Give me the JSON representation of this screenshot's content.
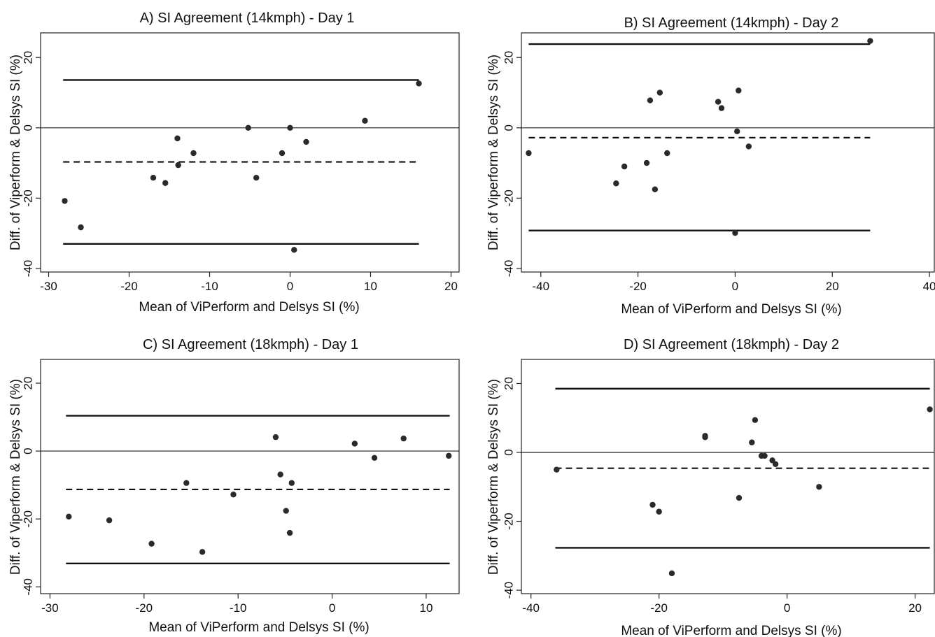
{
  "chart_data": [
    {
      "type": "scatter",
      "title": "A) SI Agreement (14kmph) - Day 1",
      "xlabel": "Mean of ViPerform and Delsys SI (%)",
      "ylabel": "Diff. of Viperform & Delsys SI (%)",
      "xlim": [
        -31,
        21
      ],
      "ylim": [
        -41,
        27
      ],
      "xticks": [
        -30,
        -20,
        -10,
        0,
        10,
        20
      ],
      "yticks": [
        -40,
        -20,
        0,
        20
      ],
      "mean_bias": -9.7,
      "upper_loa": 13.6,
      "lower_loa": -33.0,
      "line_x_range": [
        -28.2,
        16.0
      ],
      "points": [
        {
          "x": -28.0,
          "y": -20.8
        },
        {
          "x": -26.0,
          "y": -28.3
        },
        {
          "x": -17.0,
          "y": -14.2
        },
        {
          "x": -15.5,
          "y": -15.7
        },
        {
          "x": -14.0,
          "y": -3.0
        },
        {
          "x": -13.9,
          "y": -10.6
        },
        {
          "x": -12.0,
          "y": -7.2
        },
        {
          "x": -5.2,
          "y": 0.0
        },
        {
          "x": -4.2,
          "y": -14.2
        },
        {
          "x": -1.0,
          "y": -7.2
        },
        {
          "x": 0.0,
          "y": 0.0
        },
        {
          "x": 0.5,
          "y": -34.7
        },
        {
          "x": 2.0,
          "y": -4.0
        },
        {
          "x": 9.3,
          "y": 2.0
        },
        {
          "x": 16.0,
          "y": 12.6
        }
      ]
    },
    {
      "type": "scatter",
      "title": "B) SI Agreement (14kmph) - Day 2",
      "xlabel": "Mean of ViPerform and Delsys SI (%)",
      "ylabel": "Diff. of Viperform & Delsys SI (%)",
      "xlim": [
        -44,
        41
      ],
      "ylim": [
        -41,
        27
      ],
      "xticks": [
        -40,
        -20,
        0,
        20,
        40
      ],
      "yticks": [
        -40,
        -20,
        0,
        20
      ],
      "mean_bias": -2.8,
      "upper_loa": 23.8,
      "lower_loa": -29.2,
      "line_x_range": [
        -42.5,
        27.8
      ],
      "points": [
        {
          "x": -42.5,
          "y": -7.2
        },
        {
          "x": -24.5,
          "y": -15.8
        },
        {
          "x": -22.8,
          "y": -11.0
        },
        {
          "x": -18.2,
          "y": -10.0
        },
        {
          "x": -17.5,
          "y": 7.8
        },
        {
          "x": -16.5,
          "y": -17.5
        },
        {
          "x": -15.5,
          "y": 10.0
        },
        {
          "x": -14.0,
          "y": -7.2
        },
        {
          "x": -3.5,
          "y": 7.4
        },
        {
          "x": -2.8,
          "y": 5.6
        },
        {
          "x": 0.0,
          "y": -29.9
        },
        {
          "x": 0.4,
          "y": -1.0
        },
        {
          "x": 0.7,
          "y": 10.6
        },
        {
          "x": 2.8,
          "y": -5.3
        },
        {
          "x": 27.8,
          "y": 24.7
        }
      ]
    },
    {
      "type": "scatter",
      "title": "C) SI Agreement (18kmph) - Day 1",
      "xlabel": "Mean of ViPerform and Delsys SI (%)",
      "ylabel": "Diff. of Viperform & Delsys SI (%)",
      "xlim": [
        -31,
        13.5
      ],
      "ylim": [
        -42,
        27
      ],
      "xticks": [
        -30,
        -20,
        -10,
        0,
        10
      ],
      "yticks": [
        -40,
        -20,
        0,
        20
      ],
      "mean_bias": -11.3,
      "upper_loa": 10.4,
      "lower_loa": -33.1,
      "line_x_range": [
        -28.3,
        12.5
      ],
      "points": [
        {
          "x": -28.0,
          "y": -19.3
        },
        {
          "x": -23.7,
          "y": -20.4
        },
        {
          "x": -19.2,
          "y": -27.3
        },
        {
          "x": -15.5,
          "y": -9.4
        },
        {
          "x": -13.8,
          "y": -29.7
        },
        {
          "x": -10.5,
          "y": -12.8
        },
        {
          "x": -6.0,
          "y": 4.1
        },
        {
          "x": -5.5,
          "y": -6.9
        },
        {
          "x": -4.9,
          "y": -17.6
        },
        {
          "x": -4.5,
          "y": -24.1
        },
        {
          "x": -4.3,
          "y": -9.4
        },
        {
          "x": 2.4,
          "y": 2.2
        },
        {
          "x": 4.5,
          "y": -2.0
        },
        {
          "x": 7.6,
          "y": 3.7
        },
        {
          "x": 12.4,
          "y": -1.4
        }
      ]
    },
    {
      "type": "scatter",
      "title": "D) SI Agreement (18kmph) - Day 2",
      "xlabel": "Mean of ViPerform and Delsys SI (%)",
      "ylabel": "Diff. of Viperform & Delsys SI (%)",
      "xlim": [
        -41.5,
        23
      ],
      "ylim": [
        -41,
        27
      ],
      "xticks": [
        -40,
        -20,
        0,
        20
      ],
      "yticks": [
        -40,
        -20,
        0,
        20
      ],
      "mean_bias": -4.6,
      "upper_loa": 18.5,
      "lower_loa": -27.7,
      "line_x_range": [
        -36.2,
        22.3
      ],
      "points": [
        {
          "x": -36.0,
          "y": -5.0
        },
        {
          "x": -21.0,
          "y": -15.2
        },
        {
          "x": -20.0,
          "y": -17.2
        },
        {
          "x": -18.0,
          "y": -35.1
        },
        {
          "x": -12.8,
          "y": 4.8
        },
        {
          "x": -12.8,
          "y": 4.4
        },
        {
          "x": -7.5,
          "y": -13.2
        },
        {
          "x": -5.5,
          "y": 2.9
        },
        {
          "x": -5.0,
          "y": 9.4
        },
        {
          "x": -4.0,
          "y": -1.0
        },
        {
          "x": -3.5,
          "y": -1.0
        },
        {
          "x": -2.3,
          "y": -2.3
        },
        {
          "x": -1.8,
          "y": -3.4
        },
        {
          "x": 5.0,
          "y": -10.0
        },
        {
          "x": 22.3,
          "y": 12.5
        }
      ]
    }
  ]
}
